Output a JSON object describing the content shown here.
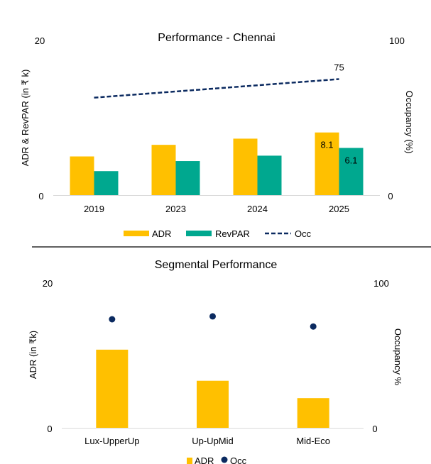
{
  "chart_data": [
    {
      "type": "bar",
      "title": "Performance - Chennai",
      "categories": [
        "2019",
        "2023",
        "2024",
        "2025"
      ],
      "series": [
        {
          "name": "ADR",
          "kind": "bar",
          "axis": "left",
          "color": "#FFC000",
          "values": [
            5.0,
            6.5,
            7.3,
            8.1
          ]
        },
        {
          "name": "RevPAR",
          "kind": "bar",
          "axis": "left",
          "color": "#00A88F",
          "values": [
            3.1,
            4.4,
            5.1,
            6.1
          ]
        },
        {
          "name": "Occ",
          "kind": "line-dashed",
          "axis": "right",
          "color": "#0B2A60",
          "values": [
            63,
            67,
            71,
            75
          ]
        }
      ],
      "data_labels": [
        {
          "series": "ADR",
          "category": "2025",
          "text": "8.1"
        },
        {
          "series": "RevPAR",
          "category": "2025",
          "text": "6.1"
        },
        {
          "series": "Occ",
          "category": "2025",
          "text": "75"
        }
      ],
      "ylabel": "ADR & RevPAR (in ₹ k)",
      "y2label": "Occupancy (%)",
      "ylim": [
        0,
        20
      ],
      "y2lim": [
        0,
        100
      ],
      "yticks": [
        "0",
        "20"
      ],
      "y2ticks": [
        "0",
        "100"
      ],
      "grid": false,
      "legend": {
        "placement": "bottom",
        "entries": [
          "ADR",
          "RevPAR",
          "Occ"
        ]
      }
    },
    {
      "type": "bar",
      "title": "Segmental Performance",
      "categories": [
        "Lux-UpperUp",
        "Up-UpMid",
        "Mid-Eco"
      ],
      "series": [
        {
          "name": "ADR",
          "kind": "bar",
          "axis": "left",
          "color": "#FFC000",
          "values": [
            10.8,
            6.5,
            4.1
          ]
        },
        {
          "name": "Occ",
          "kind": "scatter",
          "axis": "right",
          "color": "#0B2A60",
          "values": [
            75,
            77,
            70
          ]
        }
      ],
      "ylabel": "ADR (in ₹k)",
      "y2label": "Occupancy %",
      "ylim": [
        0,
        20
      ],
      "y2lim": [
        0,
        100
      ],
      "yticks": [
        "0",
        "20"
      ],
      "y2ticks": [
        "0",
        "100"
      ],
      "grid": false,
      "legend": {
        "placement": "bottom",
        "entries": [
          "ADR",
          "Occ"
        ]
      }
    }
  ]
}
